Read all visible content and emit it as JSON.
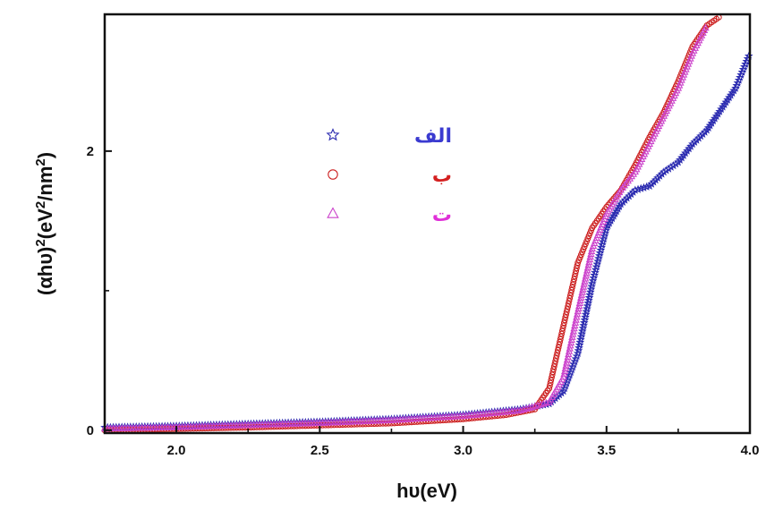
{
  "chart_data": {
    "type": "scatter",
    "title": "",
    "xlabel": "hυ(eV)",
    "ylabel_base": "(αhυ)",
    "ylabel_sup": "2",
    "ylabel_unit": "(eV",
    "ylabel_unit_sup": "2",
    "ylabel_unit_tail": "/nm",
    "ylabel_unit_tail_sup": "2",
    "ylabel_close": ")",
    "xlim": [
      1.75,
      4.0
    ],
    "ylim": [
      -0.02,
      2.98
    ],
    "x_ticks": [
      {
        "value": 2.0,
        "label": "2.0"
      },
      {
        "value": 2.5,
        "label": "2.5"
      },
      {
        "value": 3.0,
        "label": "3.0"
      },
      {
        "value": 3.5,
        "label": "3.5"
      },
      {
        "value": 4.0,
        "label": "4.0"
      }
    ],
    "y_ticks": [
      {
        "value": 0,
        "label": "0"
      },
      {
        "value": 2,
        "label": "2"
      }
    ],
    "y_minor_ticks": [
      1
    ],
    "x_minor_ticks": [
      2.25,
      2.75,
      3.25,
      3.75
    ],
    "grid": false,
    "legend_position": "top-center",
    "series": [
      {
        "name": "الف",
        "marker": "star",
        "color": "#2b2bb0",
        "label_color": "#3a3ad0",
        "points": [
          [
            1.75,
            0.02
          ],
          [
            2.0,
            0.03
          ],
          [
            2.25,
            0.045
          ],
          [
            2.5,
            0.06
          ],
          [
            2.75,
            0.08
          ],
          [
            3.0,
            0.11
          ],
          [
            3.2,
            0.15
          ],
          [
            3.3,
            0.19
          ],
          [
            3.35,
            0.28
          ],
          [
            3.4,
            0.55
          ],
          [
            3.45,
            1.05
          ],
          [
            3.5,
            1.45
          ],
          [
            3.55,
            1.62
          ],
          [
            3.6,
            1.72
          ],
          [
            3.65,
            1.75
          ],
          [
            3.7,
            1.85
          ],
          [
            3.75,
            1.92
          ],
          [
            3.8,
            2.05
          ],
          [
            3.85,
            2.15
          ],
          [
            3.9,
            2.3
          ],
          [
            3.95,
            2.45
          ],
          [
            4.0,
            2.7
          ]
        ]
      },
      {
        "name": "ب",
        "marker": "circle",
        "color": "#cc2020",
        "label_color": "#d42020",
        "points": [
          [
            1.75,
            0.0
          ],
          [
            2.0,
            0.01
          ],
          [
            2.25,
            0.02
          ],
          [
            2.5,
            0.035
          ],
          [
            2.75,
            0.05
          ],
          [
            3.0,
            0.08
          ],
          [
            3.15,
            0.11
          ],
          [
            3.25,
            0.15
          ],
          [
            3.3,
            0.3
          ],
          [
            3.35,
            0.75
          ],
          [
            3.4,
            1.2
          ],
          [
            3.45,
            1.45
          ],
          [
            3.5,
            1.6
          ],
          [
            3.55,
            1.72
          ],
          [
            3.6,
            1.9
          ],
          [
            3.65,
            2.1
          ],
          [
            3.7,
            2.28
          ],
          [
            3.75,
            2.5
          ],
          [
            3.8,
            2.75
          ],
          [
            3.85,
            2.9
          ],
          [
            3.9,
            2.97
          ]
        ]
      },
      {
        "name": "ت",
        "marker": "triangle",
        "color": "#cc44cc",
        "label_color": "#e030d8",
        "points": [
          [
            1.75,
            0.01
          ],
          [
            2.0,
            0.02
          ],
          [
            2.25,
            0.035
          ],
          [
            2.5,
            0.05
          ],
          [
            2.75,
            0.07
          ],
          [
            3.0,
            0.1
          ],
          [
            3.2,
            0.14
          ],
          [
            3.3,
            0.2
          ],
          [
            3.35,
            0.38
          ],
          [
            3.4,
            0.85
          ],
          [
            3.45,
            1.3
          ],
          [
            3.5,
            1.55
          ],
          [
            3.55,
            1.72
          ],
          [
            3.6,
            1.85
          ],
          [
            3.65,
            2.05
          ],
          [
            3.7,
            2.25
          ],
          [
            3.75,
            2.45
          ],
          [
            3.8,
            2.7
          ],
          [
            3.85,
            2.9
          ]
        ]
      }
    ]
  }
}
